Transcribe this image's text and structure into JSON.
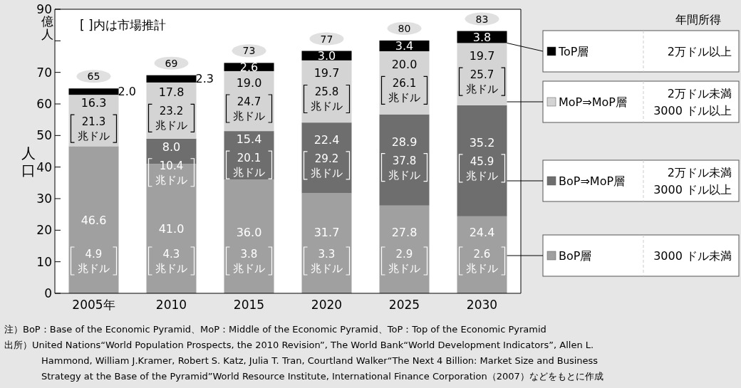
{
  "chart_data": {
    "type": "bar",
    "stacked": true,
    "ylabel": "人口",
    "categories": [
      "2005年",
      "2010",
      "2015",
      "2020",
      "2025",
      "2030"
    ],
    "ylim": [
      0,
      90
    ],
    "yticks": [
      0,
      10,
      20,
      30,
      40,
      50,
      60,
      70,
      {
        "value": 80,
        "label": null
      },
      90
    ],
    "legend": "right",
    "series": [
      {
        "name": "BoP層",
        "color": "#a0a0a0",
        "values": [
          46.6,
          41.0,
          36.0,
          31.7,
          27.8,
          24.4
        ],
        "value_labels": [
          "46.6",
          "41.0",
          "36.0",
          "31.7",
          "27.8",
          "24.4"
        ]
      },
      {
        "name": "BoP⇒MoP層",
        "color": "#6e6e6e",
        "values": [
          null,
          8.0,
          15.4,
          22.4,
          28.9,
          35.2
        ],
        "value_labels": [
          null,
          "8.0",
          "15.4",
          "22.4",
          "28.9",
          "35.2"
        ]
      },
      {
        "name": "MoP⇒MoP層",
        "color": "#d4d4d4",
        "values": [
          16.3,
          17.8,
          19.0,
          19.7,
          20.0,
          19.7
        ],
        "value_labels": [
          "16.3",
          "17.8",
          "19.0",
          "19.7",
          "20.0",
          "19.7"
        ]
      },
      {
        "name": "ToP層",
        "color": "#000000",
        "values": [
          2.0,
          2.3,
          2.6,
          3.0,
          3.4,
          3.8
        ],
        "value_labels": [
          "2.0",
          "2.3",
          "2.6",
          "3.0",
          "3.4",
          "3.8"
        ]
      }
    ],
    "totals": [
      "65",
      "69",
      "73",
      "77",
      "80",
      "83"
    ],
    "annotations": [
      "億人",
      "[ ]内は市場推計",
      "年間所得",
      "3000 ドル未満",
      "2万ドル未満\n3000 ドル以上",
      "2万ドル未満\n3000 ドル以上",
      "2万ドル以上",
      "注）BoP：Base of the Economic Pyramid、MoP：Middle of the Economic Pyramid、ToP：Top of the Economic Pyramid",
      "出所）United Nations“World Population Prospects, the 2010 Revision”, The World Bank“World Development Indicators”, Allen L.\nHammond, William J.Kramer, Robert S. Katz, Julia T. Tran, Courtland Walker“The Next 4 Billion: Market Size and Business\nStrategy at the Base of the Pyramid”World Resource Institute, International Finance Corporation（2007）などをもとに作成",
      "4.9\n兆ドル",
      "21.3\n兆ドル",
      "4.3\n兆ドル",
      "10.4\n兆ドル",
      "23.2\n兆ドル",
      "3.8\n兆ドル",
      "20.1\n兆ドル",
      "24.7\n兆ドル",
      "3.3\n兆ドル",
      "29.2\n兆ドル",
      "25.8\n兆ドル",
      "2.9\n兆ドル",
      "37.8\n兆ドル",
      "26.1\n兆ドル",
      "2.6\n兆ドル",
      "45.9\n兆ドル",
      "25.7\n兆ドル"
    ]
  }
}
